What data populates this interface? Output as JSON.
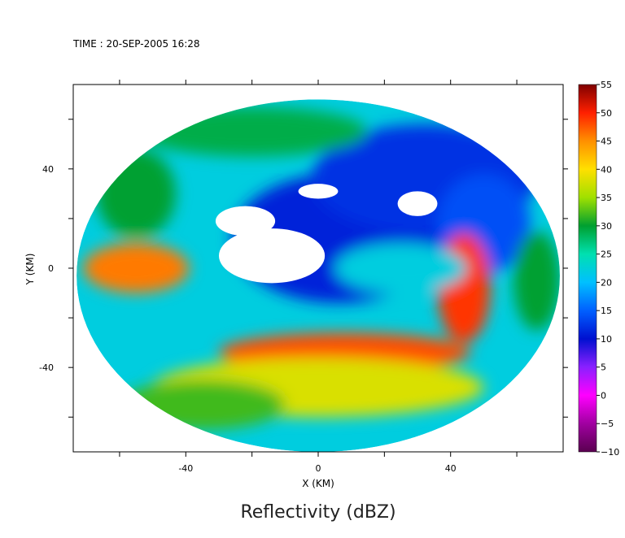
{
  "header": {
    "time_text": "TIME : 20-SEP-2005 16:28"
  },
  "chart_data": {
    "type": "heatmap",
    "title": "Reflectivity (dBZ)",
    "xlabel": "X (KM)",
    "ylabel": "Y (KM)",
    "xlim": [
      -74,
      74
    ],
    "ylim": [
      -74,
      74
    ],
    "x_ticks": [
      -40,
      0,
      40
    ],
    "y_ticks": [
      40,
      0,
      -40
    ],
    "x_tick_labels": [
      "-40",
      "0",
      "40"
    ],
    "y_tick_labels": [
      "40",
      "0",
      "-40"
    ],
    "grid": false,
    "domain": {
      "center": [
        0,
        -3
      ],
      "radius_x": 73,
      "radius_y": 71
    },
    "colorbar": {
      "min": -10,
      "max": 55,
      "ticks": [
        55,
        50,
        45,
        40,
        35,
        30,
        25,
        20,
        15,
        10,
        5,
        0,
        -5,
        -10
      ],
      "tick_labels": [
        "55",
        "50",
        "45",
        "40",
        "35",
        "30",
        "25",
        "20",
        "15",
        "10",
        "5",
        "0",
        "−5",
        "−10"
      ],
      "stops": [
        {
          "value": -10,
          "color": "#5a0050"
        },
        {
          "value": -5,
          "color": "#a000a0"
        },
        {
          "value": 0,
          "color": "#ff00ff"
        },
        {
          "value": 5,
          "color": "#8a20ff"
        },
        {
          "value": 10,
          "color": "#0010d0"
        },
        {
          "value": 15,
          "color": "#0060ff"
        },
        {
          "value": 20,
          "color": "#00c0ff"
        },
        {
          "value": 25,
          "color": "#00e0b0"
        },
        {
          "value": 30,
          "color": "#00a030"
        },
        {
          "value": 35,
          "color": "#a0e000"
        },
        {
          "value": 40,
          "color": "#ffe000"
        },
        {
          "value": 45,
          "color": "#ff9000"
        },
        {
          "value": 50,
          "color": "#ff2000"
        },
        {
          "value": 55,
          "color": "#800000"
        }
      ]
    },
    "fields": {
      "background_dbz": 22,
      "no_data_regions": [
        {
          "x": -14,
          "y": 5,
          "rx": 16,
          "ry": 11
        },
        {
          "x": -22,
          "y": 19,
          "rx": 9,
          "ry": 6
        },
        {
          "x": 30,
          "y": 26,
          "rx": 6,
          "ry": 5
        },
        {
          "x": 0,
          "y": 31,
          "rx": 6,
          "ry": 3
        }
      ],
      "features": [
        {
          "name": "inner-eye-clear-blue",
          "x": 6,
          "y": 12,
          "rx": 32,
          "ry": 26,
          "dbz": 11
        },
        {
          "name": "northeast-blue-region",
          "x": 32,
          "y": 36,
          "rx": 34,
          "ry": 22,
          "dbz": 12
        },
        {
          "name": "east-blue-band",
          "x": 50,
          "y": 18,
          "rx": 14,
          "ry": 20,
          "dbz": 14
        },
        {
          "name": "main-rainband-east",
          "x": 44,
          "y": -8,
          "rx": 8,
          "ry": 22,
          "dbz": 49
        },
        {
          "name": "main-rainband-south",
          "x": 8,
          "y": -34,
          "rx": 38,
          "ry": 8,
          "dbz": 48
        },
        {
          "name": "main-rainband-west",
          "x": -55,
          "y": 0,
          "rx": 16,
          "ry": 10,
          "dbz": 46
        },
        {
          "name": "outer-yellow-band",
          "x": 0,
          "y": -48,
          "rx": 50,
          "ry": 12,
          "dbz": 38
        },
        {
          "name": "southwest-green",
          "x": -35,
          "y": -55,
          "rx": 25,
          "ry": 10,
          "dbz": 32
        },
        {
          "name": "north-green-arc",
          "x": -20,
          "y": 55,
          "rx": 35,
          "ry": 10,
          "dbz": 29
        },
        {
          "name": "west-green",
          "x": -55,
          "y": 30,
          "rx": 12,
          "ry": 18,
          "dbz": 30
        },
        {
          "name": "far-east-green",
          "x": 66,
          "y": -5,
          "rx": 7,
          "ry": 20,
          "dbz": 30
        },
        {
          "name": "spiral-cyan-edge",
          "x": 25,
          "y": 0,
          "rx": 20,
          "ry": 10,
          "dbz": 22
        }
      ]
    }
  }
}
